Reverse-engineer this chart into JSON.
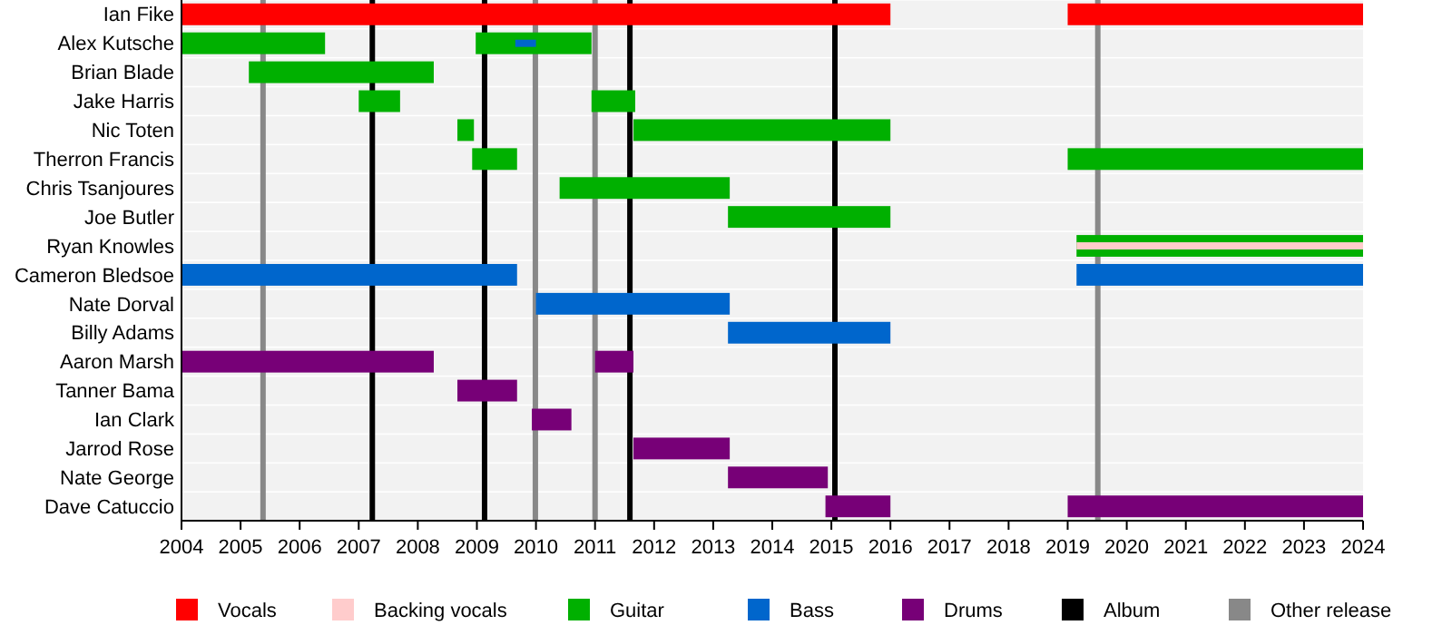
{
  "chart_data": {
    "type": "bar",
    "orientation": "horizontal",
    "legend": "bottom",
    "categories": [
      "Ian Fike",
      "Alex Kutsche",
      "Brian Blade",
      "Jake Harris",
      "Nic Toten",
      "Therron Francis",
      "Chris Tsanjoures",
      "Joe Butler",
      "Ryan Knowles",
      "Cameron Bledsoe",
      "Nate Dorval",
      "Billy Adams",
      "Aaron Marsh",
      "Tanner Bama",
      "Ian Clark",
      "Jarrod Rose",
      "Nate George",
      "Dave Catuccio"
    ],
    "xlim": [
      2004,
      2024
    ],
    "xticks": [
      2004,
      2005,
      2006,
      2007,
      2008,
      2009,
      2010,
      2011,
      2012,
      2013,
      2014,
      2015,
      2016,
      2017,
      2018,
      2019,
      2020,
      2021,
      2022,
      2023,
      2024
    ],
    "series": [
      {
        "name": "Vocals",
        "color": "#ff0000",
        "base": [
          2004,
          null,
          null,
          null,
          null,
          null,
          null,
          null,
          null,
          null,
          null,
          null,
          null,
          null,
          null,
          null,
          null,
          null
        ],
        "values": [
          12,
          null,
          null,
          null,
          null,
          null,
          null,
          null,
          null,
          null,
          null,
          null,
          null,
          null,
          null,
          null,
          null,
          null
        ]
      },
      {
        "color": "#ff0000",
        "base": [
          2019,
          null,
          null,
          null,
          null,
          null,
          null,
          null,
          null,
          null,
          null,
          null,
          null,
          null,
          null,
          null,
          null,
          null
        ],
        "values": [
          5,
          null,
          null,
          null,
          null,
          null,
          null,
          null,
          null,
          null,
          null,
          null,
          null,
          null,
          null,
          null,
          null,
          null
        ]
      },
      {
        "name": "Backing vocals",
        "color": "#ffcccc",
        "base": [
          null,
          null,
          null,
          null,
          null,
          null,
          null,
          null,
          2019.15,
          null,
          null,
          null,
          null,
          null,
          null,
          null,
          null,
          null
        ],
        "values": [
          null,
          null,
          null,
          null,
          null,
          null,
          null,
          null,
          4.85,
          null,
          null,
          null,
          null,
          null,
          null,
          null,
          null,
          null
        ]
      },
      {
        "name": "Guitar",
        "color": "#00b000",
        "base": [
          null,
          2004,
          2005.14,
          2007,
          2008.67,
          2008.92,
          2010.4,
          2013.25,
          2019.15,
          null,
          null,
          null,
          null,
          null,
          null,
          null,
          null,
          null
        ],
        "values": [
          null,
          2.43,
          3.13,
          0.7,
          0.28,
          0.76,
          2.88,
          2.75,
          4.85,
          null,
          null,
          null,
          null,
          null,
          null,
          null,
          null,
          null
        ]
      },
      {
        "color": "#00b000",
        "base": [
          null,
          2008.98,
          null,
          2010.94,
          2011.65,
          2019,
          null,
          null,
          null,
          null,
          null,
          null,
          null,
          null,
          null,
          null,
          null,
          null
        ],
        "values": [
          null,
          1.96,
          null,
          0.74,
          4.35,
          5,
          null,
          null,
          null,
          null,
          null,
          null,
          null,
          null,
          null,
          null,
          null,
          null
        ]
      },
      {
        "name": "Bass",
        "color": "#0066cc",
        "base": [
          null,
          2009.65,
          null,
          null,
          null,
          null,
          null,
          null,
          null,
          2004,
          2010,
          2013.25,
          null,
          null,
          null,
          null,
          null,
          null
        ],
        "values": [
          null,
          0.35,
          null,
          null,
          null,
          null,
          null,
          null,
          null,
          5.68,
          3.28,
          2.75,
          null,
          null,
          null,
          null,
          null,
          null
        ]
      },
      {
        "color": "#0066cc",
        "base": [
          null,
          null,
          null,
          null,
          null,
          null,
          null,
          null,
          null,
          2019.15,
          null,
          null,
          null,
          null,
          null,
          null,
          null,
          null
        ],
        "values": [
          null,
          null,
          null,
          null,
          null,
          null,
          null,
          null,
          null,
          4.85,
          null,
          null,
          null,
          null,
          null,
          null,
          null,
          null
        ]
      },
      {
        "name": "Drums",
        "color": "#770077",
        "base": [
          null,
          null,
          null,
          null,
          null,
          null,
          null,
          null,
          null,
          null,
          null,
          null,
          2004,
          2008.67,
          2009.93,
          2011.65,
          2013.25,
          2014.9
        ],
        "values": [
          null,
          null,
          null,
          null,
          null,
          null,
          null,
          null,
          null,
          null,
          null,
          null,
          4.27,
          1.01,
          0.67,
          1.63,
          1.69,
          1.1
        ]
      },
      {
        "color": "#770077",
        "base": [
          null,
          null,
          null,
          null,
          null,
          null,
          null,
          null,
          null,
          null,
          null,
          null,
          2011,
          null,
          null,
          null,
          null,
          2019
        ],
        "values": [
          null,
          null,
          null,
          null,
          null,
          null,
          null,
          null,
          null,
          null,
          null,
          null,
          0.65,
          null,
          null,
          null,
          null,
          5
        ]
      }
    ],
    "ref_lines": [
      {
        "axis": "x",
        "value": 2007.23,
        "label": "Album",
        "color": "#000000"
      },
      {
        "axis": "x",
        "value": 2009.13,
        "color": "#000000"
      },
      {
        "axis": "x",
        "value": 2011.59,
        "color": "#000000"
      },
      {
        "axis": "x",
        "value": 2015.06,
        "color": "#000000"
      },
      {
        "axis": "x",
        "value": 2005.38,
        "label": "Other release",
        "color": "#888888"
      },
      {
        "axis": "x",
        "value": 2009.99,
        "color": "#888888"
      },
      {
        "axis": "x",
        "value": 2011,
        "color": "#888888"
      },
      {
        "axis": "x",
        "value": 2019.51,
        "color": "#888888"
      }
    ]
  }
}
